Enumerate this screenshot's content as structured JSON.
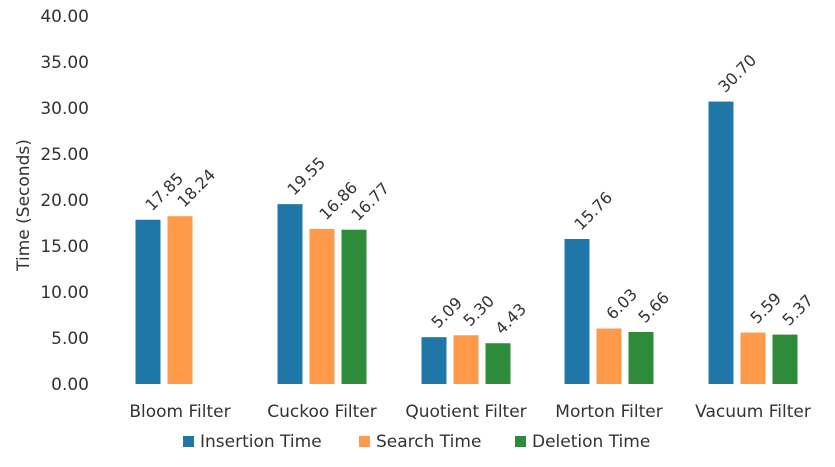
{
  "chart_data": {
    "type": "bar",
    "ylabel": "Time (Seconds)",
    "xlabel": "",
    "ylim": [
      0,
      40
    ],
    "yticks": [
      "0.00",
      "5.00",
      "10.00",
      "15.00",
      "20.00",
      "25.00",
      "30.00",
      "35.00",
      "40.00"
    ],
    "grid": false,
    "legend_position": "bottom",
    "categories": [
      "Bloom Filter",
      "Cuckoo Filter",
      "Quotient Filter",
      "Morton Filter",
      "Vacuum Filter"
    ],
    "series": [
      {
        "name": "Insertion Time",
        "color": "#1f77a8",
        "values": [
          17.85,
          19.55,
          5.09,
          15.76,
          30.7
        ],
        "labels": [
          "17.85",
          "19.55",
          "5.09",
          "15.76",
          "30.70"
        ]
      },
      {
        "name": "Search Time",
        "color": "#ff9a4a",
        "values": [
          18.24,
          16.86,
          5.3,
          6.03,
          5.59
        ],
        "labels": [
          "18.24",
          "16.86",
          "5.30",
          "6.03",
          "5.59"
        ]
      },
      {
        "name": "Deletion Time",
        "color": "#2e8b3a",
        "values": [
          null,
          16.77,
          4.43,
          5.66,
          5.37
        ],
        "labels": [
          null,
          "16.77",
          "4.43",
          "5.66",
          "5.37"
        ]
      }
    ]
  }
}
